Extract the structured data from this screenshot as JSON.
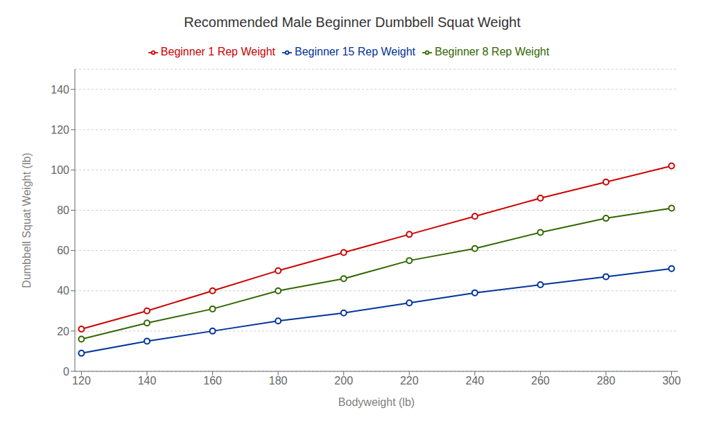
{
  "chart_data": {
    "type": "line",
    "title": "Recommended Male Beginner Dumbbell Squat Weight",
    "x_label": "Bodyweight (lb)",
    "y_label": "Dumbbell Squat Weight (lb)",
    "x": [
      120,
      140,
      160,
      180,
      200,
      220,
      240,
      260,
      280,
      300
    ],
    "series": [
      {
        "name": "Beginner 1 Rep Weight",
        "color": "#cc0000",
        "marker": "circle",
        "values": [
          21,
          30,
          40,
          50,
          59,
          68,
          77,
          86,
          94,
          102
        ]
      },
      {
        "name": "Beginner 8 Rep Weight",
        "color": "#336600",
        "marker": "circle",
        "values": [
          16,
          24,
          31,
          40,
          46,
          55,
          61,
          69,
          76,
          81
        ]
      },
      {
        "name": "Beginner 15 Rep Weight",
        "color": "#003399",
        "marker": "circle",
        "values": [
          9,
          15,
          20,
          25,
          29,
          34,
          39,
          43,
          47,
          51
        ]
      }
    ],
    "xlim": [
      118,
      302
    ],
    "ylim": [
      0,
      150
    ],
    "xticks": [
      120,
      140,
      160,
      180,
      200,
      220,
      240,
      260,
      280,
      300
    ],
    "yticks": [
      0,
      20,
      40,
      60,
      80,
      100,
      120,
      140
    ],
    "grid": "y",
    "legend": "top"
  }
}
